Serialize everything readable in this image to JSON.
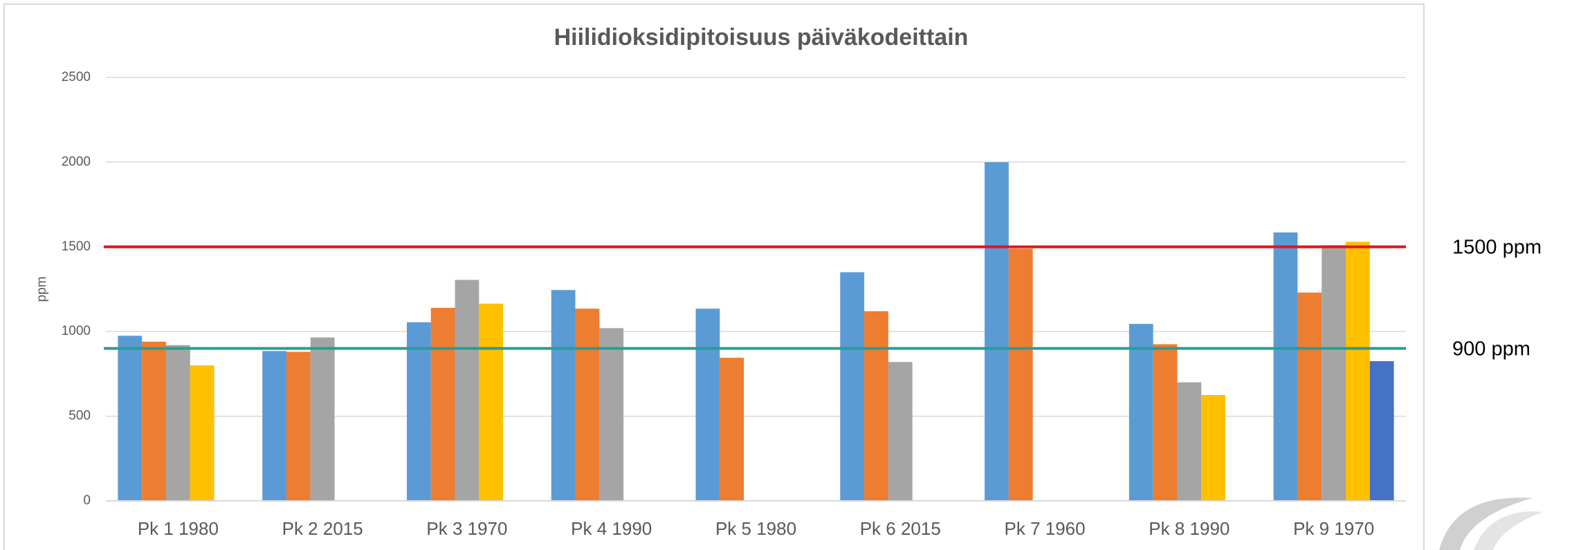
{
  "chart_data": {
    "type": "bar",
    "title": "Hiilidioksidipitoisuus päiväkodeittain",
    "y_label": "ppm",
    "categories": [
      "Pk 1 1980",
      "Pk 2 2015",
      "Pk 3 1970",
      "Pk 4 1990",
      "Pk 5 1980",
      "Pk 6 2015",
      "Pk 7 1960",
      "Pk 8 1990",
      "Pk 9 1970"
    ],
    "series": [
      {
        "color": "#5b9bd5",
        "values": [
          975,
          885,
          1055,
          1245,
          1135,
          1350,
          2000,
          1045,
          1585
        ]
      },
      {
        "color": "#ed7d31",
        "values": [
          940,
          880,
          1140,
          1135,
          845,
          1120,
          1490,
          925,
          1230
        ]
      },
      {
        "color": "#a5a5a5",
        "values": [
          920,
          965,
          1305,
          1020,
          null,
          820,
          null,
          700,
          1510
        ]
      },
      {
        "color": "#ffc000",
        "values": [
          800,
          null,
          1165,
          null,
          null,
          null,
          null,
          625,
          1530
        ]
      },
      {
        "color": "#4472c4",
        "values": [
          null,
          null,
          null,
          null,
          null,
          null,
          null,
          null,
          825
        ]
      }
    ],
    "ylim": [
      0,
      2500
    ],
    "yticks": [
      0,
      500,
      1000,
      1500,
      2000,
      2500
    ],
    "grid": true,
    "reference_lines": [
      {
        "value": 1500,
        "label": "1500 ppm",
        "color": "#e3161b"
      },
      {
        "value": 900,
        "label": "900 ppm",
        "color": "#2a9d8f"
      }
    ]
  }
}
